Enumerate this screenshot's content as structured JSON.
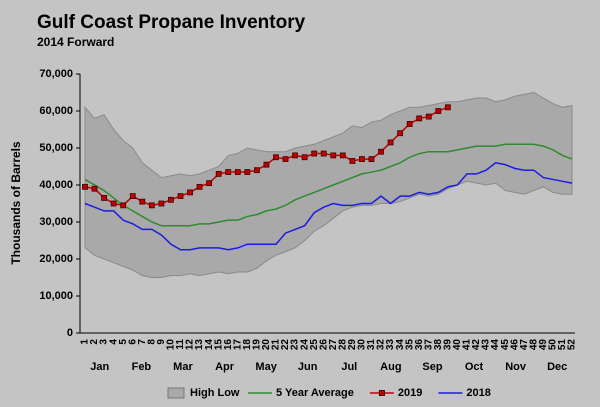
{
  "chart_data": {
    "type": "line",
    "title": "Gulf Coast Propane Inventory",
    "subtitle": "2014 Forward",
    "y_label": "Thousands of Barrels",
    "categories": [
      1,
      2,
      3,
      4,
      5,
      6,
      7,
      8,
      9,
      10,
      11,
      12,
      13,
      14,
      15,
      16,
      17,
      18,
      19,
      20,
      21,
      22,
      23,
      24,
      25,
      26,
      27,
      28,
      29,
      30,
      31,
      32,
      33,
      34,
      35,
      36,
      37,
      38,
      39,
      40,
      41,
      42,
      43,
      44,
      45,
      46,
      47,
      48,
      49,
      50,
      51,
      52
    ],
    "months": [
      "Jan",
      "Feb",
      "Mar",
      "Apr",
      "May",
      "Jun",
      "Jul",
      "Aug",
      "Sep",
      "Oct",
      "Nov",
      "Dec"
    ],
    "ylim": [
      0,
      70000
    ],
    "yticks": [
      0,
      {
        "value": 10000,
        "label": "10,000"
      },
      {
        "value": 20000,
        "label": "20,000"
      },
      {
        "value": 30000,
        "label": "30,000"
      },
      {
        "value": 40000,
        "label": "40,000"
      },
      {
        "value": 50000,
        "label": "50,000"
      },
      {
        "value": 60000,
        "label": "60,000"
      },
      {
        "value": 70000,
        "label": "70,000"
      }
    ],
    "band": {
      "name": "High Low",
      "color": "#a9a9a9",
      "high": [
        61000,
        58000,
        59000,
        55000,
        52000,
        50000,
        46000,
        44000,
        42000,
        42500,
        43000,
        42500,
        43000,
        44000,
        45000,
        48000,
        48500,
        50000,
        49500,
        49000,
        49000,
        49000,
        50000,
        50500,
        51000,
        52000,
        53000,
        54000,
        56000,
        55500,
        57000,
        57500,
        59000,
        60000,
        61000,
        61000,
        61500,
        62000,
        62500,
        62500,
        63000,
        63500,
        63500,
        62500,
        63000,
        64000,
        64500,
        65000,
        63500,
        62000,
        61000,
        61500
      ],
      "low": [
        23000,
        21000,
        20000,
        19000,
        18000,
        17000,
        15500,
        15000,
        15000,
        15500,
        15500,
        16000,
        15500,
        16000,
        16500,
        16000,
        16500,
        16500,
        17500,
        19500,
        21000,
        22000,
        23000,
        25000,
        27500,
        29000,
        31000,
        33000,
        34000,
        34500,
        34500,
        35000,
        35000,
        35500,
        36500,
        37500,
        37000,
        37500,
        39000,
        40000,
        41000,
        40500,
        40000,
        40500,
        38500,
        38000,
        37500,
        38500,
        39500,
        38000,
        37500,
        37500
      ]
    },
    "series": [
      {
        "name": "5 Year Average",
        "color": "#2e8b2e",
        "values": [
          41500,
          40000,
          38500,
          36500,
          34500,
          33000,
          31500,
          30000,
          29000,
          29000,
          29000,
          29000,
          29500,
          29500,
          30000,
          30500,
          30500,
          31500,
          32000,
          33000,
          33500,
          34500,
          36000,
          37000,
          38000,
          39000,
          40000,
          41000,
          42000,
          43000,
          43500,
          44000,
          45000,
          46000,
          47500,
          48500,
          49000,
          49000,
          49000,
          49500,
          50000,
          50500,
          50500,
          50500,
          51000,
          51000,
          51000,
          51000,
          50500,
          49500,
          48000,
          47000
        ]
      },
      {
        "name": "2019",
        "color": "#c00000",
        "marker": "square",
        "values": [
          39500,
          39000,
          36500,
          35000,
          34500,
          37000,
          35500,
          34500,
          35000,
          36000,
          37000,
          38000,
          39500,
          40500,
          43000,
          43500,
          43500,
          43500,
          44000,
          45500,
          47500,
          47000,
          48000,
          47500,
          48500,
          48500,
          48000,
          48000,
          46500,
          47000,
          47000,
          49000,
          51500,
          54000,
          56500,
          58000,
          58500,
          60000,
          61000,
          null,
          null,
          null,
          null,
          null,
          null,
          null,
          null,
          null,
          null,
          null,
          null,
          null
        ]
      },
      {
        "name": "2018",
        "color": "#1c1ce0",
        "values": [
          35000,
          34000,
          33000,
          33000,
          30500,
          29500,
          28000,
          28000,
          26500,
          24000,
          22500,
          22500,
          23000,
          23000,
          23000,
          22500,
          23000,
          24000,
          24000,
          24000,
          24000,
          27000,
          28000,
          29000,
          32500,
          34000,
          35000,
          34500,
          34500,
          35000,
          35000,
          37000,
          35000,
          37000,
          37000,
          38000,
          37500,
          38000,
          39500,
          40000,
          43000,
          43000,
          44000,
          46000,
          45500,
          44500,
          44000,
          44000,
          42000,
          41500,
          41000,
          40500
        ]
      }
    ]
  }
}
